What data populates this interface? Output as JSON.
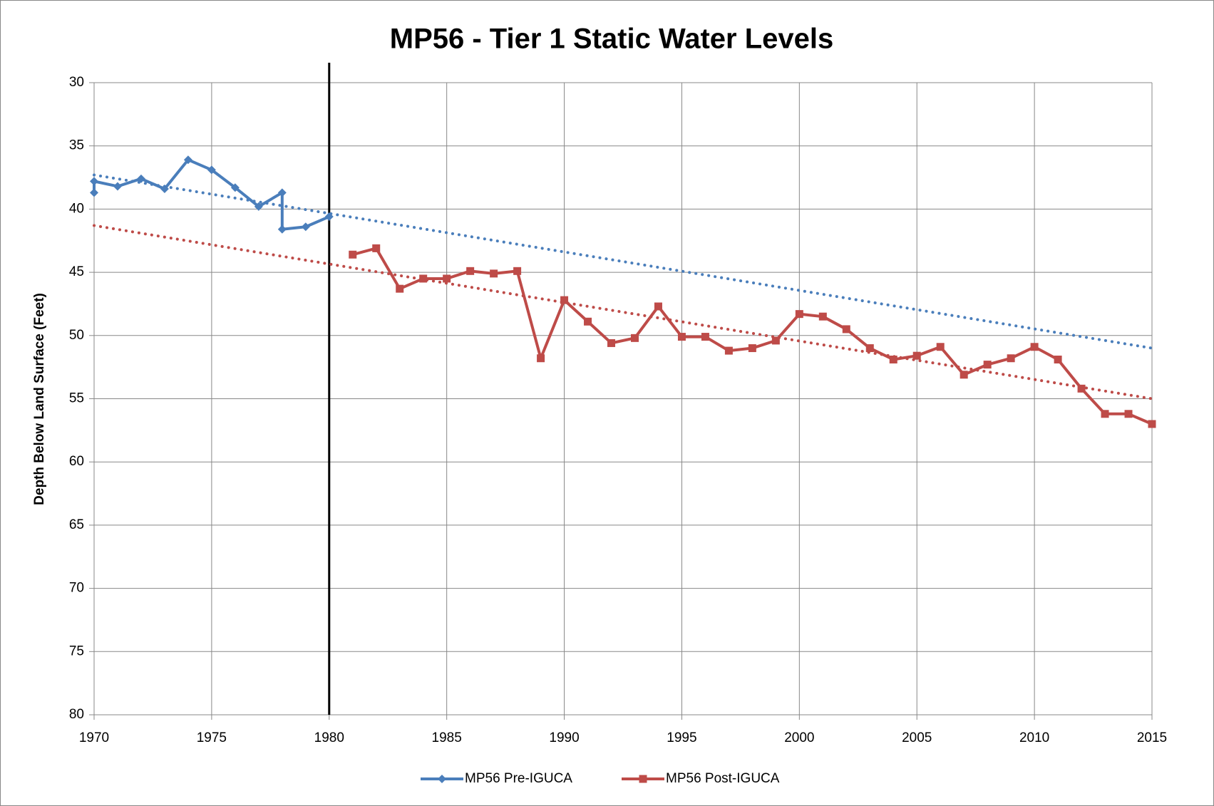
{
  "chart_data": {
    "type": "line",
    "title": "MP56 - Tier 1 Static Water Levels",
    "y_label": "Depth Below Land Surface (Feet)",
    "xlim": [
      1970,
      2015
    ],
    "xticks": [
      1970,
      1975,
      1980,
      1985,
      1990,
      1995,
      2000,
      2005,
      2010,
      2015
    ],
    "ylim": [
      30,
      80
    ],
    "yticks": [
      30,
      35,
      40,
      45,
      50,
      55,
      60,
      65,
      70,
      75,
      80
    ],
    "y_reversed": true,
    "grid": true,
    "legend": "bottom",
    "vline_x": 1980,
    "series": [
      {
        "name": "MP56 Pre-IGUCA",
        "color": "#4a7ebb",
        "marker": "diamond",
        "x": [
          1970,
          1970,
          1971,
          1972,
          1973,
          1974,
          1975,
          1976,
          1977,
          1978,
          1978,
          1979,
          1980
        ],
        "values": [
          38.7,
          37.8,
          38.2,
          37.6,
          38.4,
          36.1,
          36.9,
          38.3,
          39.8,
          38.7,
          41.6,
          41.4,
          40.6
        ]
      },
      {
        "name": "MP56 Post-IGUCA",
        "color": "#be4b48",
        "marker": "square",
        "x": [
          1981,
          1982,
          1983,
          1984,
          1985,
          1986,
          1987,
          1988,
          1989,
          1990,
          1991,
          1992,
          1993,
          1994,
          1995,
          1996,
          1997,
          1998,
          1999,
          2000,
          2001,
          2002,
          2003,
          2004,
          2005,
          2006,
          2007,
          2008,
          2009,
          2010,
          2011,
          2012,
          2013,
          2014,
          2015
        ],
        "values": [
          43.6,
          43.1,
          46.3,
          45.5,
          45.5,
          44.9,
          45.1,
          44.9,
          51.8,
          47.2,
          48.9,
          50.6,
          50.2,
          47.7,
          50.1,
          50.1,
          51.2,
          51.0,
          50.4,
          48.3,
          48.5,
          49.5,
          51.0,
          51.9,
          51.6,
          50.9,
          53.1,
          52.3,
          51.8,
          50.9,
          51.9,
          54.2,
          56.2,
          56.2,
          57.0
        ]
      }
    ],
    "trendlines": [
      {
        "color": "#4a7ebb",
        "x": [
          1970,
          2015
        ],
        "values": [
          37.3,
          51.0
        ]
      },
      {
        "color": "#be4b48",
        "x": [
          1970,
          2015
        ],
        "values": [
          41.3,
          55.0
        ]
      }
    ]
  }
}
